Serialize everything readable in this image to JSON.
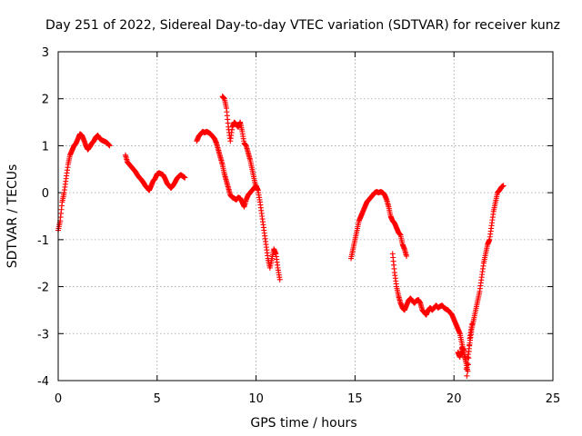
{
  "chart_data": {
    "type": "scatter",
    "title": "Day 251 of 2022, Sidereal Day-to-day VTEC variation (SDTVAR) for receiver kunz",
    "xlabel": "GPS time / hours",
    "ylabel": "SDTVAR / TECUs",
    "xlim": [
      0,
      25
    ],
    "ylim": [
      -4,
      3
    ],
    "xticks": [
      "0",
      "5",
      "10",
      "15",
      "20",
      "25"
    ],
    "yticks": [
      "3",
      "2",
      "1",
      "0",
      "-1",
      "-2",
      "-3",
      "-4"
    ],
    "grid": true,
    "marker": "plus",
    "marker_color": "#ff0000",
    "segments": [
      [
        [
          0.0,
          -0.8
        ],
        [
          0.1,
          -0.6
        ],
        [
          0.2,
          -0.2
        ],
        [
          0.3,
          0.0
        ],
        [
          0.4,
          0.3
        ],
        [
          0.5,
          0.6
        ],
        [
          0.6,
          0.8
        ],
        [
          0.7,
          0.9
        ],
        [
          0.8,
          1.0
        ],
        [
          0.9,
          1.05
        ],
        [
          1.0,
          1.15
        ],
        [
          1.1,
          1.25
        ],
        [
          1.2,
          1.22
        ],
        [
          1.3,
          1.12
        ],
        [
          1.4,
          1.0
        ],
        [
          1.5,
          0.92
        ],
        [
          1.6,
          0.98
        ],
        [
          1.7,
          1.05
        ],
        [
          1.8,
          1.1
        ],
        [
          1.9,
          1.18
        ],
        [
          2.0,
          1.22
        ],
        [
          2.1,
          1.15
        ],
        [
          2.2,
          1.12
        ],
        [
          2.3,
          1.1
        ],
        [
          2.4,
          1.08
        ],
        [
          2.5,
          1.05
        ],
        [
          2.6,
          1.0
        ]
      ],
      [
        [
          3.4,
          0.8
        ],
        [
          3.5,
          0.65
        ],
        [
          3.6,
          0.6
        ],
        [
          3.7,
          0.55
        ],
        [
          3.8,
          0.5
        ],
        [
          3.9,
          0.45
        ],
        [
          4.0,
          0.38
        ],
        [
          4.1,
          0.32
        ],
        [
          4.2,
          0.28
        ],
        [
          4.3,
          0.22
        ],
        [
          4.4,
          0.15
        ],
        [
          4.5,
          0.1
        ],
        [
          4.6,
          0.05
        ],
        [
          4.7,
          0.15
        ],
        [
          4.8,
          0.25
        ],
        [
          4.9,
          0.3
        ],
        [
          5.0,
          0.4
        ],
        [
          5.1,
          0.42
        ],
        [
          5.2,
          0.4
        ],
        [
          5.3,
          0.38
        ],
        [
          5.4,
          0.3
        ],
        [
          5.5,
          0.2
        ],
        [
          5.6,
          0.15
        ],
        [
          5.7,
          0.1
        ],
        [
          5.8,
          0.15
        ],
        [
          5.9,
          0.22
        ],
        [
          6.0,
          0.3
        ],
        [
          6.1,
          0.35
        ],
        [
          6.2,
          0.38
        ],
        [
          6.3,
          0.35
        ],
        [
          6.4,
          0.32
        ]
      ],
      [
        [
          7.0,
          1.1
        ],
        [
          7.1,
          1.2
        ],
        [
          7.2,
          1.25
        ],
        [
          7.3,
          1.3
        ],
        [
          7.4,
          1.28
        ],
        [
          7.5,
          1.3
        ],
        [
          7.6,
          1.28
        ],
        [
          7.7,
          1.25
        ],
        [
          7.8,
          1.2
        ],
        [
          7.9,
          1.15
        ],
        [
          8.0,
          1.05
        ],
        [
          8.1,
          0.9
        ],
        [
          8.2,
          0.75
        ],
        [
          8.3,
          0.6
        ],
        [
          8.4,
          0.4
        ],
        [
          8.5,
          0.25
        ],
        [
          8.6,
          0.1
        ],
        [
          8.7,
          -0.05
        ],
        [
          8.8,
          -0.1
        ],
        [
          8.9,
          -0.12
        ],
        [
          9.0,
          -0.15
        ],
        [
          9.1,
          -0.1
        ],
        [
          9.2,
          -0.12
        ],
        [
          9.3,
          -0.2
        ],
        [
          9.4,
          -0.3
        ],
        [
          9.5,
          -0.15
        ],
        [
          9.6,
          -0.05
        ],
        [
          9.7,
          0.0
        ],
        [
          9.8,
          0.05
        ],
        [
          9.9,
          0.1
        ],
        [
          10.0,
          0.15
        ],
        [
          10.1,
          0.05
        ],
        [
          10.2,
          -0.2
        ],
        [
          10.3,
          -0.5
        ],
        [
          10.4,
          -0.8
        ],
        [
          10.5,
          -1.1
        ],
        [
          10.6,
          -1.4
        ],
        [
          10.7,
          -1.6
        ],
        [
          10.8,
          -1.4
        ],
        [
          10.9,
          -1.2
        ],
        [
          11.0,
          -1.3
        ],
        [
          11.1,
          -1.6
        ],
        [
          11.2,
          -1.85
        ]
      ],
      [
        [
          8.3,
          2.05
        ],
        [
          8.4,
          2.0
        ],
        [
          8.5,
          1.8
        ],
        [
          8.6,
          1.4
        ],
        [
          8.7,
          1.1
        ],
        [
          8.8,
          1.4
        ],
        [
          8.9,
          1.5
        ],
        [
          9.0,
          1.45
        ],
        [
          9.1,
          1.4
        ],
        [
          9.2,
          1.5
        ],
        [
          9.3,
          1.3
        ],
        [
          9.4,
          1.05
        ],
        [
          9.5,
          1.0
        ],
        [
          9.6,
          0.85
        ],
        [
          9.7,
          0.7
        ],
        [
          9.8,
          0.5
        ],
        [
          9.9,
          0.3
        ],
        [
          10.0,
          0.1
        ]
      ],
      [
        [
          14.8,
          -1.4
        ],
        [
          14.9,
          -1.2
        ],
        [
          15.0,
          -1.0
        ],
        [
          15.1,
          -0.8
        ],
        [
          15.2,
          -0.6
        ],
        [
          15.3,
          -0.5
        ],
        [
          15.4,
          -0.4
        ],
        [
          15.5,
          -0.3
        ],
        [
          15.6,
          -0.2
        ],
        [
          15.7,
          -0.15
        ],
        [
          15.8,
          -0.1
        ],
        [
          15.9,
          -0.05
        ],
        [
          16.0,
          0.0
        ],
        [
          16.1,
          0.02
        ],
        [
          16.2,
          0.0
        ],
        [
          16.3,
          0.02
        ],
        [
          16.4,
          0.0
        ],
        [
          16.5,
          -0.05
        ],
        [
          16.6,
          -0.15
        ],
        [
          16.7,
          -0.3
        ],
        [
          16.8,
          -0.5
        ],
        [
          16.9,
          -0.6
        ],
        [
          17.0,
          -0.65
        ],
        [
          17.1,
          -0.75
        ],
        [
          17.2,
          -0.85
        ],
        [
          17.3,
          -0.9
        ],
        [
          17.4,
          -1.1
        ],
        [
          17.5,
          -1.2
        ],
        [
          17.6,
          -1.35
        ]
      ],
      [
        [
          16.9,
          -1.3
        ],
        [
          17.0,
          -1.7
        ],
        [
          17.1,
          -2.0
        ],
        [
          17.2,
          -2.2
        ],
        [
          17.3,
          -2.35
        ],
        [
          17.4,
          -2.45
        ],
        [
          17.5,
          -2.5
        ],
        [
          17.6,
          -2.4
        ],
        [
          17.7,
          -2.3
        ],
        [
          17.8,
          -2.25
        ],
        [
          17.9,
          -2.3
        ],
        [
          18.0,
          -2.35
        ],
        [
          18.1,
          -2.3
        ],
        [
          18.2,
          -2.28
        ],
        [
          18.3,
          -2.35
        ],
        [
          18.4,
          -2.5
        ],
        [
          18.5,
          -2.55
        ],
        [
          18.6,
          -2.6
        ],
        [
          18.7,
          -2.5
        ],
        [
          18.8,
          -2.45
        ],
        [
          18.9,
          -2.5
        ],
        [
          19.0,
          -2.45
        ],
        [
          19.1,
          -2.4
        ],
        [
          19.2,
          -2.45
        ],
        [
          19.3,
          -2.42
        ],
        [
          19.4,
          -2.4
        ],
        [
          19.5,
          -2.45
        ],
        [
          19.6,
          -2.48
        ],
        [
          19.7,
          -2.5
        ],
        [
          19.8,
          -2.55
        ],
        [
          19.9,
          -2.6
        ],
        [
          20.0,
          -2.7
        ],
        [
          20.1,
          -2.8
        ],
        [
          20.2,
          -2.9
        ],
        [
          20.3,
          -3.0
        ],
        [
          20.4,
          -3.2
        ],
        [
          20.5,
          -3.4
        ],
        [
          20.6,
          -3.6
        ],
        [
          20.65,
          -3.9
        ],
        [
          20.7,
          -3.5
        ],
        [
          20.8,
          -3.2
        ],
        [
          20.9,
          -2.9
        ],
        [
          21.0,
          -2.7
        ],
        [
          21.1,
          -2.5
        ],
        [
          21.2,
          -2.3
        ],
        [
          21.3,
          -2.1
        ],
        [
          21.4,
          -1.8
        ],
        [
          21.5,
          -1.5
        ],
        [
          21.6,
          -1.3
        ],
        [
          21.7,
          -1.1
        ],
        [
          21.8,
          -1.0
        ],
        [
          21.9,
          -0.7
        ],
        [
          22.0,
          -0.4
        ],
        [
          22.1,
          -0.2
        ],
        [
          22.2,
          0.0
        ],
        [
          22.3,
          0.05
        ],
        [
          22.4,
          0.12
        ],
        [
          22.5,
          0.15
        ]
      ],
      [
        [
          20.2,
          -3.4
        ],
        [
          20.3,
          -3.5
        ],
        [
          20.4,
          -3.3
        ],
        [
          20.5,
          -3.35
        ],
        [
          20.6,
          -3.6
        ],
        [
          20.7,
          -3.8
        ],
        [
          20.8,
          -3.1
        ],
        [
          20.9,
          -2.8
        ]
      ]
    ]
  }
}
